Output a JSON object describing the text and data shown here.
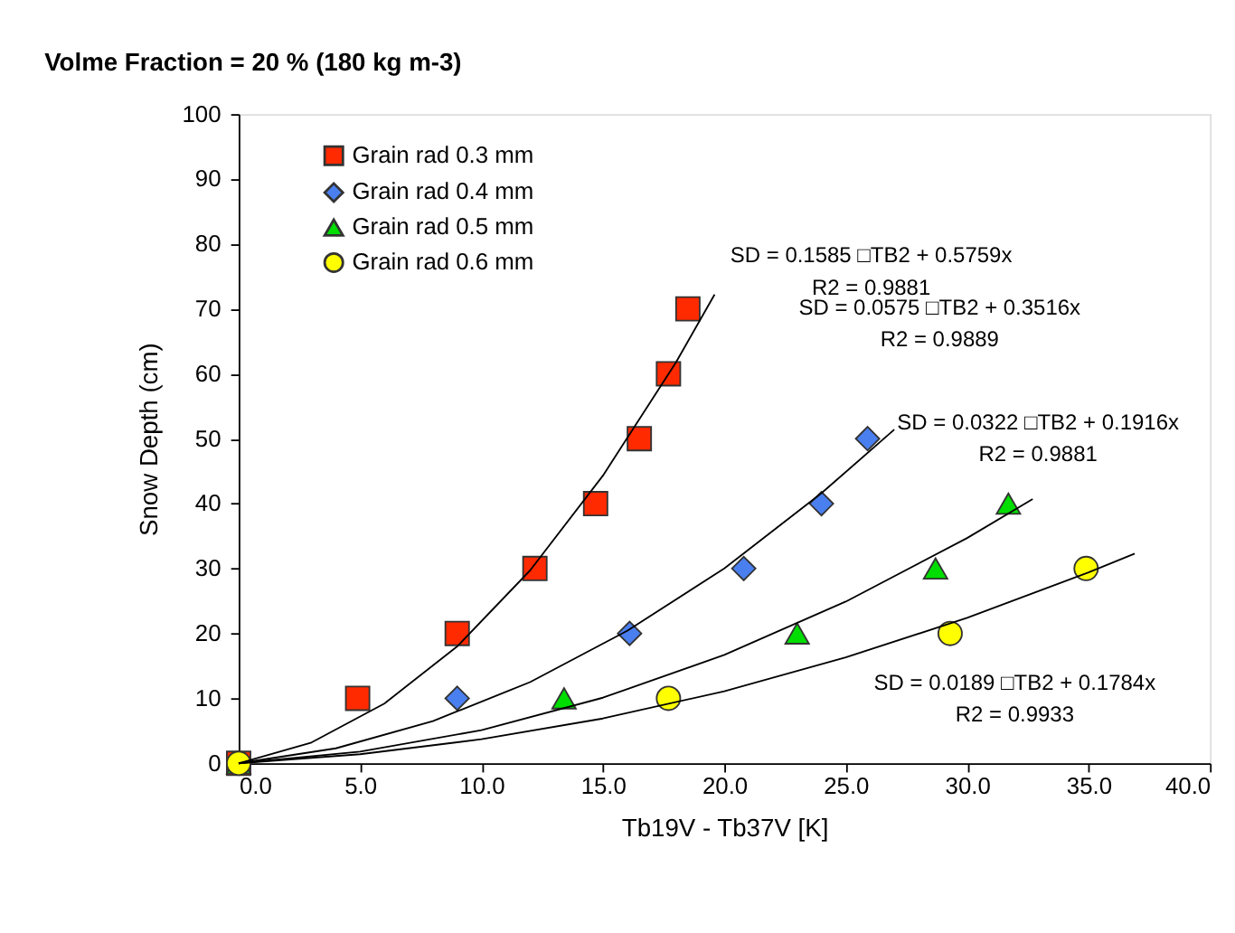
{
  "chart_data": {
    "type": "scatter",
    "title": "Volme Fraction = 20 % (180 kg m-3)",
    "xlabel": "Tb19V - Tb37V [K]",
    "ylabel": "Snow Depth (cm)",
    "series": [
      {
        "name": "Grain rad 0.3 mm",
        "color": "#ff2a00",
        "marker": "square",
        "x": [
          0,
          4.9,
          9.0,
          12.2,
          14.7,
          16.5,
          17.7,
          18.5
        ],
        "values": [
          0,
          10,
          20,
          30,
          40,
          50,
          60,
          70
        ]
      },
      {
        "name": "Grain rad 0.4 mm",
        "color": "#4a7fef",
        "marker": "diamond",
        "x": [
          9.0,
          16.1,
          20.8,
          24.0,
          25.9
        ],
        "values": [
          10,
          20,
          30,
          40,
          50
        ]
      },
      {
        "name": "Grain rad 0.5 mm",
        "color": "#00dd00",
        "marker": "triangle",
        "x": [
          0,
          13.4,
          23.0,
          28.7,
          31.7
        ],
        "values": [
          0,
          10,
          20,
          30,
          40
        ]
      },
      {
        "name": "Grain rad 0.6 mm",
        "color": "#ffff00",
        "marker": "circle",
        "x": [
          0,
          17.7,
          29.3,
          34.9
        ],
        "values": [
          0,
          10,
          20,
          30
        ]
      },
      {
        "type": "line",
        "color": "#000000",
        "x": [
          0,
          3,
          6,
          9,
          12,
          15,
          18,
          19.6
        ],
        "values": [
          0,
          3.2,
          9.2,
          18.0,
          29.7,
          44.3,
          61.7,
          72.2
        ]
      },
      {
        "type": "line",
        "color": "#000000",
        "x": [
          0,
          4,
          8,
          12,
          16,
          20,
          24,
          27
        ],
        "values": [
          0,
          2.3,
          6.5,
          12.5,
          20.4,
          30.0,
          41.6,
          51.4
        ]
      },
      {
        "type": "line",
        "color": "#000000",
        "x": [
          0,
          5,
          10,
          15,
          20,
          25,
          30,
          32.7
        ],
        "values": [
          0,
          1.8,
          5.1,
          10.1,
          16.7,
          24.9,
          34.7,
          40.7
        ]
      },
      {
        "type": "line",
        "color": "#000000",
        "x": [
          0,
          5,
          10,
          15,
          20,
          25,
          30,
          35,
          36.9
        ],
        "values": [
          0,
          1.4,
          3.7,
          6.9,
          11.1,
          16.3,
          22.4,
          29.4,
          32.3
        ]
      }
    ],
    "annotations": [
      "SD = 0.1585 □TB2 + 0.5759x\nR2 = 0.9881",
      "SD = 0.0575 □TB2 + 0.3516x\nR2 = 0.9889",
      "SD = 0.0322 □TB2 + 0.1916x\nR2 = 0.9881",
      "SD = 0.0189 □TB2 + 0.1784x\nR2 = 0.9933"
    ],
    "xlim": [
      0,
      40
    ],
    "xticks": [
      {
        "value": 0,
        "label": "0.0"
      },
      {
        "value": 5,
        "label": "5.0"
      },
      {
        "value": 10,
        "label": "10.0"
      },
      {
        "value": 15,
        "label": "15.0"
      },
      {
        "value": 20,
        "label": "20.0"
      },
      {
        "value": 25,
        "label": "25.0"
      },
      {
        "value": 30,
        "label": "30.0"
      },
      {
        "value": 35,
        "label": "35.0"
      },
      {
        "value": 40,
        "label": "40.0"
      }
    ],
    "ylim": [
      0,
      100
    ],
    "yticks": [
      0,
      10,
      20,
      30,
      40,
      50,
      60,
      70,
      80,
      90,
      100
    ],
    "grid": false,
    "legend": "top left"
  }
}
